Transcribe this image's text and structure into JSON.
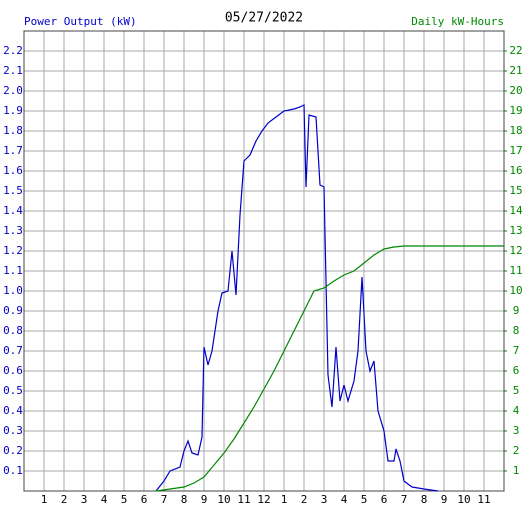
{
  "chart_data": {
    "type": "line",
    "title": "05/27/2022",
    "ylabel": "Power Output (kW)",
    "y2label": "Daily kW-Hours",
    "xlim": [
      0,
      24
    ],
    "xticks": [
      1,
      2,
      3,
      4,
      5,
      6,
      7,
      8,
      9,
      10,
      11,
      12,
      {
        "value": 13,
        "label": "1"
      },
      {
        "value": 14,
        "label": "2"
      },
      {
        "value": 15,
        "label": "3"
      },
      {
        "value": 16,
        "label": "4"
      },
      {
        "value": 17,
        "label": "5"
      },
      {
        "value": 18,
        "label": "6"
      },
      {
        "value": 19,
        "label": "7"
      },
      {
        "value": 20,
        "label": "8"
      },
      {
        "value": 21,
        "label": "9"
      },
      {
        "value": 22,
        "label": "10"
      },
      {
        "value": 23,
        "label": "11"
      }
    ],
    "ylim": [
      0,
      2.3
    ],
    "yticks": [
      0.1,
      0.2,
      0.3,
      0.4,
      0.5,
      0.6,
      0.7,
      0.8,
      0.9,
      {
        "value": 1,
        "label": "1.0"
      },
      1.1,
      1.2,
      1.3,
      1.4,
      1.5,
      1.6,
      1.7,
      1.8,
      1.9,
      {
        "value": 2,
        "label": "2.0"
      },
      2.1,
      2.2
    ],
    "y2lim": [
      0,
      23
    ],
    "y2ticks": [
      1,
      2,
      3,
      4,
      5,
      6,
      7,
      8,
      9,
      10,
      11,
      12,
      13,
      14,
      15,
      16,
      17,
      18,
      19,
      20,
      21,
      22
    ],
    "grid": true,
    "series": [
      {
        "name": "Power Output (kW)",
        "color": "#0000cc",
        "x": [
          6.6,
          7.0,
          7.3,
          7.8,
          8.0,
          8.2,
          8.4,
          8.7,
          8.9,
          9.0,
          9.2,
          9.4,
          9.7,
          9.9,
          10.2,
          10.4,
          10.6,
          10.8,
          11.0,
          11.3,
          11.6,
          11.9,
          12.2,
          12.6,
          13.0,
          13.5,
          13.8,
          14.0,
          14.1,
          14.25,
          14.6,
          14.8,
          15.0,
          15.2,
          15.4,
          15.6,
          15.8,
          16.0,
          16.2,
          16.5,
          16.7,
          16.9,
          17.1,
          17.3,
          17.5,
          17.7,
          18.0,
          18.2,
          18.5,
          18.6,
          18.8,
          19.0,
          19.4,
          20.0,
          20.7
        ],
        "values": [
          0,
          0.05,
          0.1,
          0.12,
          0.2,
          0.25,
          0.19,
          0.18,
          0.27,
          0.72,
          0.63,
          0.7,
          0.9,
          0.99,
          1.0,
          1.2,
          0.98,
          1.38,
          1.65,
          1.68,
          1.75,
          1.8,
          1.84,
          1.87,
          1.9,
          1.91,
          1.92,
          1.93,
          1.52,
          1.88,
          1.87,
          1.53,
          1.52,
          0.58,
          0.42,
          0.72,
          0.45,
          0.53,
          0.45,
          0.55,
          0.7,
          1.07,
          0.7,
          0.6,
          0.65,
          0.4,
          0.3,
          0.15,
          0.15,
          0.21,
          0.15,
          0.05,
          0.02,
          0.01,
          0
        ]
      },
      {
        "name": "Daily kW-Hours",
        "color": "#008800",
        "axis": "y2",
        "x": [
          6.6,
          8.0,
          8.5,
          9.0,
          9.5,
          10.0,
          10.5,
          11.0,
          11.5,
          12.0,
          12.5,
          13.0,
          13.5,
          14.0,
          14.5,
          15.0,
          15.5,
          16.0,
          16.5,
          17.0,
          17.5,
          18.0,
          18.5,
          19.0,
          20.0,
          24.0
        ],
        "values": [
          0,
          0.2,
          0.4,
          0.7,
          1.3,
          1.9,
          2.6,
          3.4,
          4.2,
          5.1,
          6.0,
          7.0,
          8.0,
          9.0,
          10.0,
          10.15,
          10.5,
          10.8,
          11.0,
          11.4,
          11.8,
          12.1,
          12.2,
          12.25,
          12.25,
          12.25
        ]
      }
    ]
  }
}
